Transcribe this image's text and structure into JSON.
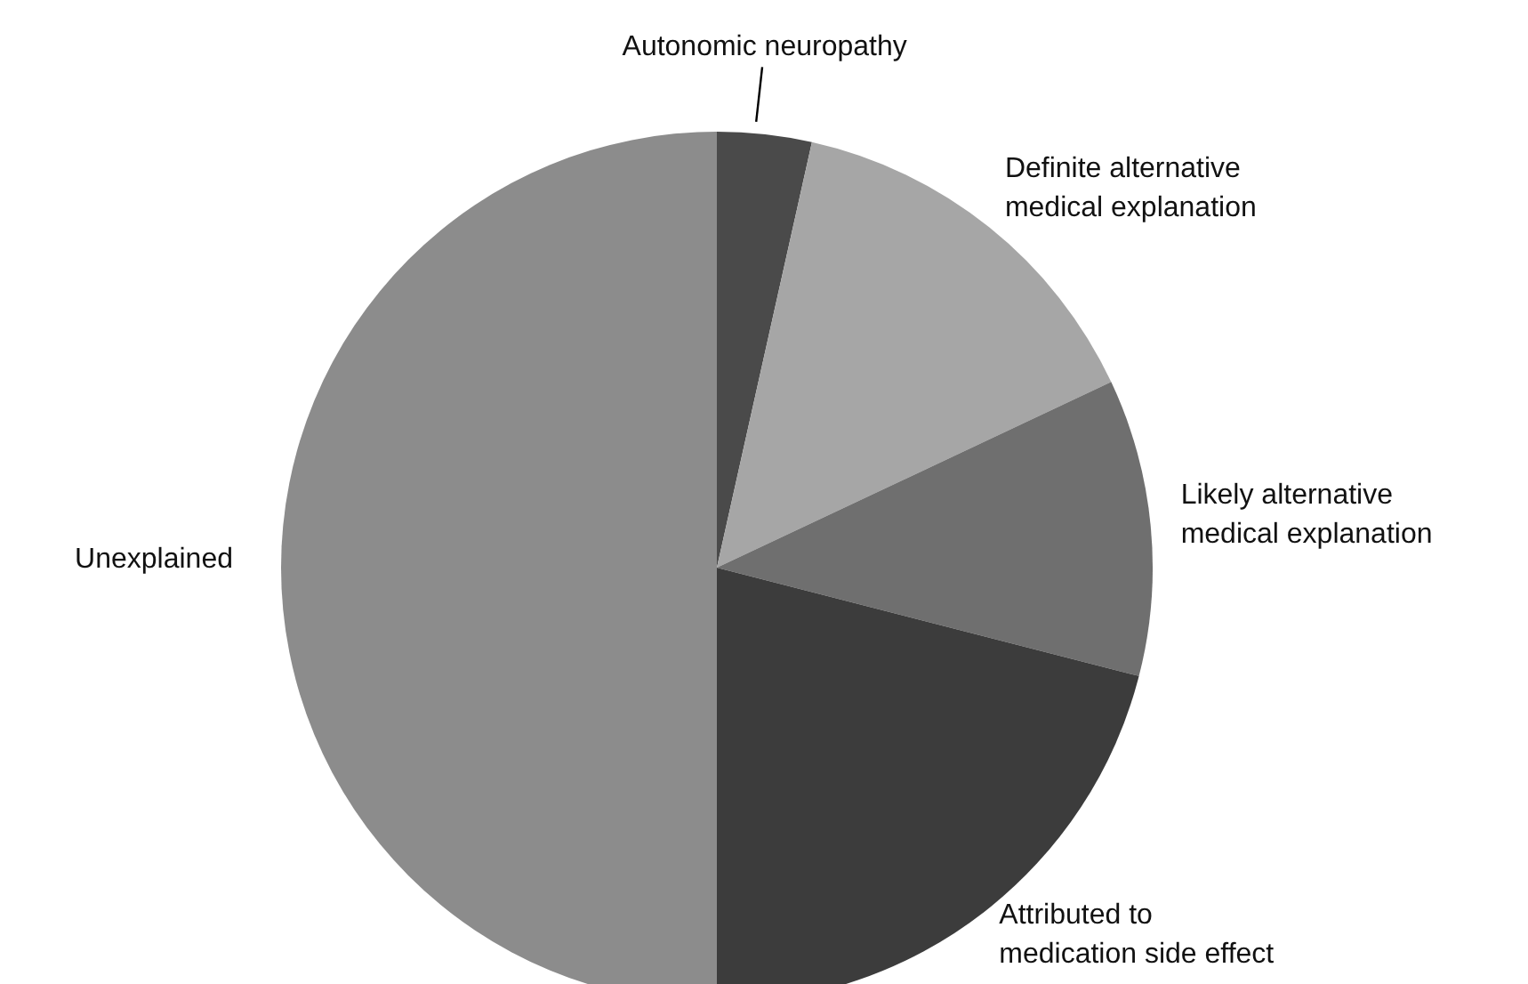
{
  "chart_data": {
    "type": "pie",
    "categories": [
      "Autonomic neuropathy",
      "Definite alternative medical explanation",
      "Likely alternative medical explanation",
      "Attributed to medication side effect",
      "Unexplained"
    ],
    "values": [
      3.5,
      14.5,
      11,
      21,
      50
    ],
    "colors": [
      "#4a4a4a",
      "#a6a6a6",
      "#6f6f6f",
      "#3c3c3c",
      "#8c8c8c"
    ],
    "legend": false
  }
}
